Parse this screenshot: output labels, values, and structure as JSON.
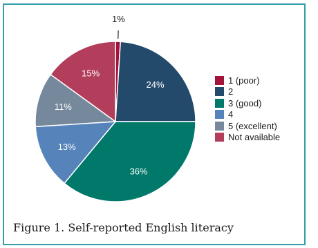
{
  "figure": {
    "caption": "Figure 1. Self-reported English literacy"
  },
  "chart_data": {
    "type": "pie",
    "title": "",
    "slices": [
      {
        "label": "1 (poor)",
        "value": 1,
        "display": "1%",
        "color": "#a4133c"
      },
      {
        "label": "2",
        "value": 24,
        "display": "24%",
        "color": "#234a6b"
      },
      {
        "label": "3 (good)",
        "value": 36,
        "display": "36%",
        "color": "#00786a"
      },
      {
        "label": "4",
        "value": 13,
        "display": "13%",
        "color": "#5683b9"
      },
      {
        "label": "5 (excellent)",
        "value": 11,
        "display": "11%",
        "color": "#76889c"
      },
      {
        "label": "Not available",
        "value": 15,
        "display": "15%",
        "color": "#b23e5c"
      }
    ],
    "legend_position": "right"
  }
}
